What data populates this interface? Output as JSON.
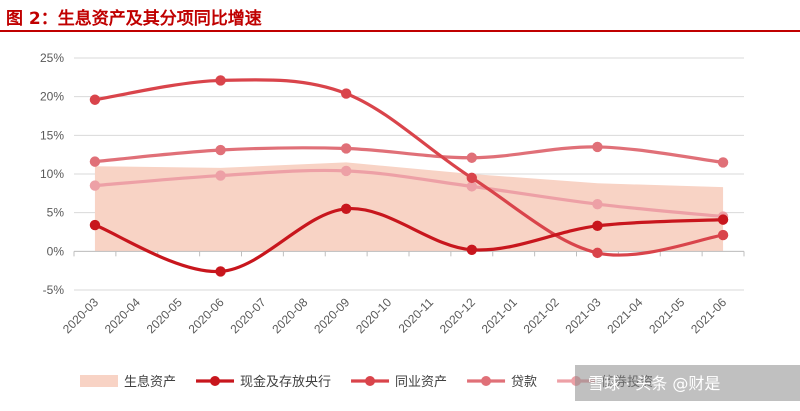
{
  "title": "图 2：生息资产及其分项同比增速",
  "watermark": {
    "text": "雪球 · 头条 @财是"
  },
  "chart_data": {
    "type": "line",
    "categories": [
      "2020-03",
      "2020-04",
      "2020-05",
      "2020-06",
      "2020-07",
      "2020-08",
      "2020-09",
      "2020-10",
      "2020-11",
      "2020-12",
      "2021-01",
      "2021-02",
      "2021-03",
      "2021-04",
      "2021-05",
      "2021-06"
    ],
    "ylim": [
      -5,
      25
    ],
    "yticks": [
      -5,
      0,
      5,
      10,
      15,
      20,
      25
    ],
    "ytick_labels": [
      "-5%",
      "0%",
      "5%",
      "10%",
      "15%",
      "20%",
      "25%"
    ],
    "grid": true,
    "legend_position": "bottom",
    "series": [
      {
        "name": "生息资产",
        "kind": "area",
        "color": "#f8d3c5",
        "x": [
          "2020-03",
          "2020-06",
          "2020-09",
          "2020-12",
          "2021-03",
          "2021-06"
        ],
        "values": [
          11.0,
          10.8,
          11.5,
          10.0,
          8.8,
          8.3
        ]
      },
      {
        "name": "现金及存放央行",
        "kind": "line",
        "color": "#c8161d",
        "x": [
          "2020-03",
          "2020-06",
          "2020-09",
          "2020-12",
          "2021-03",
          "2021-06"
        ],
        "values": [
          3.4,
          -2.6,
          5.5,
          0.2,
          3.3,
          4.1
        ]
      },
      {
        "name": "同业资产",
        "kind": "line",
        "color": "#d9444b",
        "x": [
          "2020-03",
          "2020-06",
          "2020-09",
          "2020-12",
          "2021-03",
          "2021-06"
        ],
        "values": [
          19.6,
          22.1,
          20.4,
          9.5,
          -0.2,
          2.1
        ]
      },
      {
        "name": "贷款",
        "kind": "line",
        "color": "#e07078",
        "x": [
          "2020-03",
          "2020-06",
          "2020-09",
          "2020-12",
          "2021-03",
          "2021-06"
        ],
        "values": [
          11.6,
          13.1,
          13.3,
          12.1,
          13.5,
          11.5
        ]
      },
      {
        "name": "债券投资",
        "kind": "line",
        "color": "#eda0a6",
        "x": [
          "2020-03",
          "2020-06",
          "2020-09",
          "2020-12",
          "2021-03",
          "2021-06"
        ],
        "values": [
          8.5,
          9.8,
          10.4,
          8.4,
          6.1,
          4.5
        ]
      }
    ]
  }
}
